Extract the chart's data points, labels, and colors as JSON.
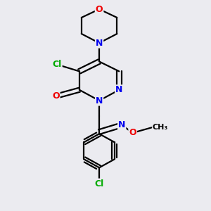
{
  "bg_color": "#ebebf0",
  "bond_color": "#000000",
  "N_color": "#0000ee",
  "O_color": "#ee0000",
  "Cl_color": "#00aa00",
  "line_width": 1.6,
  "figsize": [
    3.0,
    3.0
  ],
  "dpi": 100,
  "xlim": [
    0.0,
    1.0
  ],
  "ylim": [
    1.05,
    -0.02
  ]
}
